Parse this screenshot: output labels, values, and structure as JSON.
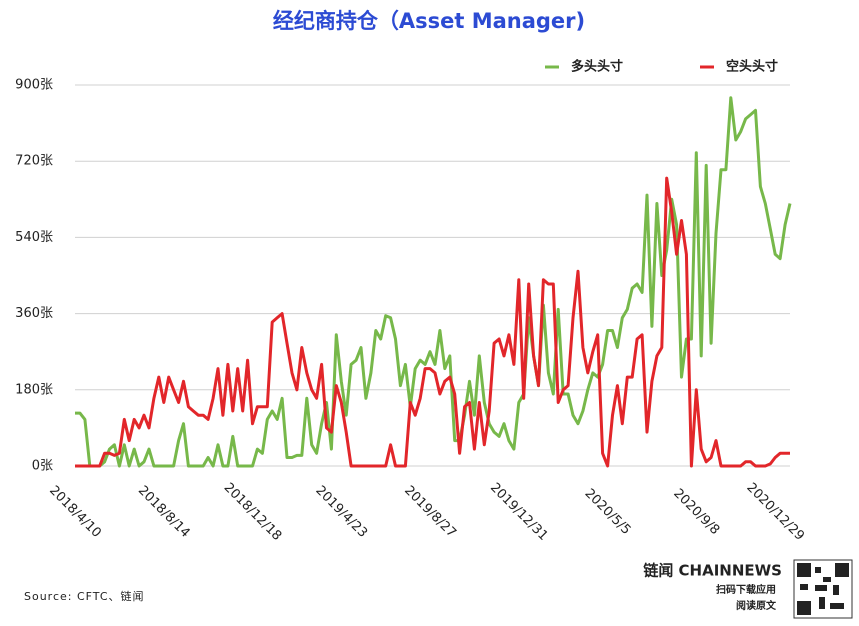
{
  "chart_data": {
    "type": "line",
    "title": "经纪商持仓（Asset Manager)",
    "source": "Source: CFTC、链闻",
    "brand": "链闻 CHAINNEWS",
    "brand_line1": "扫码下载应用",
    "brand_line2": "阅读原文",
    "legend": "top-right",
    "grid": true,
    "ylim": [
      0,
      900
    ],
    "yticks": [
      {
        "value": 0,
        "label": "0张"
      },
      {
        "value": 180,
        "label": "180张"
      },
      {
        "value": 360,
        "label": "360张"
      },
      {
        "value": 540,
        "label": "540张"
      },
      {
        "value": 720,
        "label": "720张"
      },
      {
        "value": 900,
        "label": "900张"
      }
    ],
    "categories": [
      "2018/4/10",
      null,
      null,
      null,
      null,
      null,
      null,
      null,
      null,
      null,
      null,
      null,
      null,
      null,
      null,
      null,
      null,
      null,
      "2018/8/14",
      null,
      null,
      null,
      null,
      null,
      null,
      null,
      null,
      null,
      null,
      null,
      null,
      null,
      null,
      null,
      null,
      null,
      "2018/12/18",
      null,
      null,
      null,
      null,
      null,
      null,
      null,
      null,
      null,
      null,
      null,
      null,
      null,
      null,
      null,
      null,
      null,
      "2019/4/23",
      null,
      null,
      null,
      null,
      null,
      null,
      null,
      null,
      null,
      null,
      null,
      null,
      null,
      null,
      null,
      null,
      null,
      "2019/8/27",
      null,
      null,
      null,
      null,
      null,
      null,
      null,
      null,
      null,
      null,
      null,
      null,
      null,
      null,
      null,
      null,
      null,
      "2019/12/31",
      null,
      null,
      null,
      null,
      null,
      null,
      null,
      null,
      null,
      null,
      null,
      null,
      null,
      null,
      null,
      null,
      null,
      "2020/5/5",
      null,
      null,
      null,
      null,
      null,
      null,
      null,
      null,
      null,
      null,
      null,
      null,
      null,
      null,
      null,
      null,
      null,
      "2020/9/8",
      null,
      null,
      null,
      null,
      null,
      null,
      null,
      null,
      null,
      null,
      null,
      null,
      null,
      null,
      null,
      "2020/12/29",
      null,
      null,
      null
    ],
    "series": [
      {
        "name": "多头头寸",
        "color": "#77b84a",
        "values": [
          125,
          125,
          110,
          0,
          0,
          0,
          10,
          40,
          50,
          0,
          50,
          0,
          40,
          0,
          10,
          40,
          0,
          0,
          0,
          0,
          0,
          60,
          100,
          0,
          0,
          0,
          0,
          20,
          0,
          50,
          0,
          0,
          70,
          0,
          0,
          0,
          0,
          40,
          30,
          110,
          130,
          110,
          160,
          20,
          20,
          25,
          25,
          160,
          50,
          30,
          100,
          150,
          40,
          310,
          200,
          120,
          240,
          250,
          280,
          160,
          220,
          320,
          300,
          355,
          350,
          300,
          190,
          240,
          140,
          230,
          250,
          240,
          270,
          240,
          320,
          230,
          260,
          60,
          60,
          120,
          200,
          120,
          260,
          150,
          100,
          80,
          70,
          100,
          60,
          40,
          150,
          170,
          350,
          260,
          190,
          380,
          220,
          170,
          370,
          170,
          170,
          120,
          100,
          130,
          180,
          220,
          210,
          240,
          320,
          320,
          280,
          350,
          370,
          420,
          430,
          410,
          640,
          330,
          620,
          450,
          510,
          630,
          570,
          210,
          300,
          300,
          740,
          260,
          710,
          290,
          550,
          700,
          700,
          870,
          770,
          790,
          820,
          830,
          840,
          660,
          620,
          560,
          500,
          490,
          570,
          620
        ]
      },
      {
        "name": "空头头寸",
        "color": "#e2262a",
        "values": [
          0,
          0,
          0,
          0,
          0,
          0,
          30,
          30,
          25,
          30,
          110,
          60,
          110,
          90,
          120,
          90,
          160,
          210,
          150,
          210,
          180,
          150,
          200,
          140,
          130,
          120,
          120,
          110,
          160,
          230,
          120,
          240,
          130,
          230,
          130,
          250,
          100,
          140,
          140,
          140,
          340,
          350,
          360,
          290,
          220,
          180,
          280,
          220,
          180,
          160,
          240,
          90,
          80,
          190,
          150,
          80,
          0,
          0,
          0,
          0,
          0,
          0,
          0,
          0,
          50,
          0,
          0,
          0,
          150,
          120,
          160,
          230,
          230,
          220,
          170,
          200,
          210,
          170,
          30,
          140,
          150,
          40,
          150,
          50,
          130,
          290,
          300,
          260,
          310,
          240,
          440,
          160,
          430,
          260,
          190,
          440,
          430,
          430,
          150,
          180,
          190,
          350,
          460,
          280,
          220,
          270,
          310,
          30,
          0,
          120,
          190,
          100,
          210,
          210,
          300,
          310,
          80,
          200,
          260,
          280,
          680,
          600,
          500,
          580,
          500,
          0,
          180,
          40,
          10,
          20,
          60,
          0,
          0,
          0,
          0,
          0,
          10,
          10,
          0,
          0,
          0,
          5,
          20,
          30,
          30,
          30
        ]
      }
    ]
  }
}
